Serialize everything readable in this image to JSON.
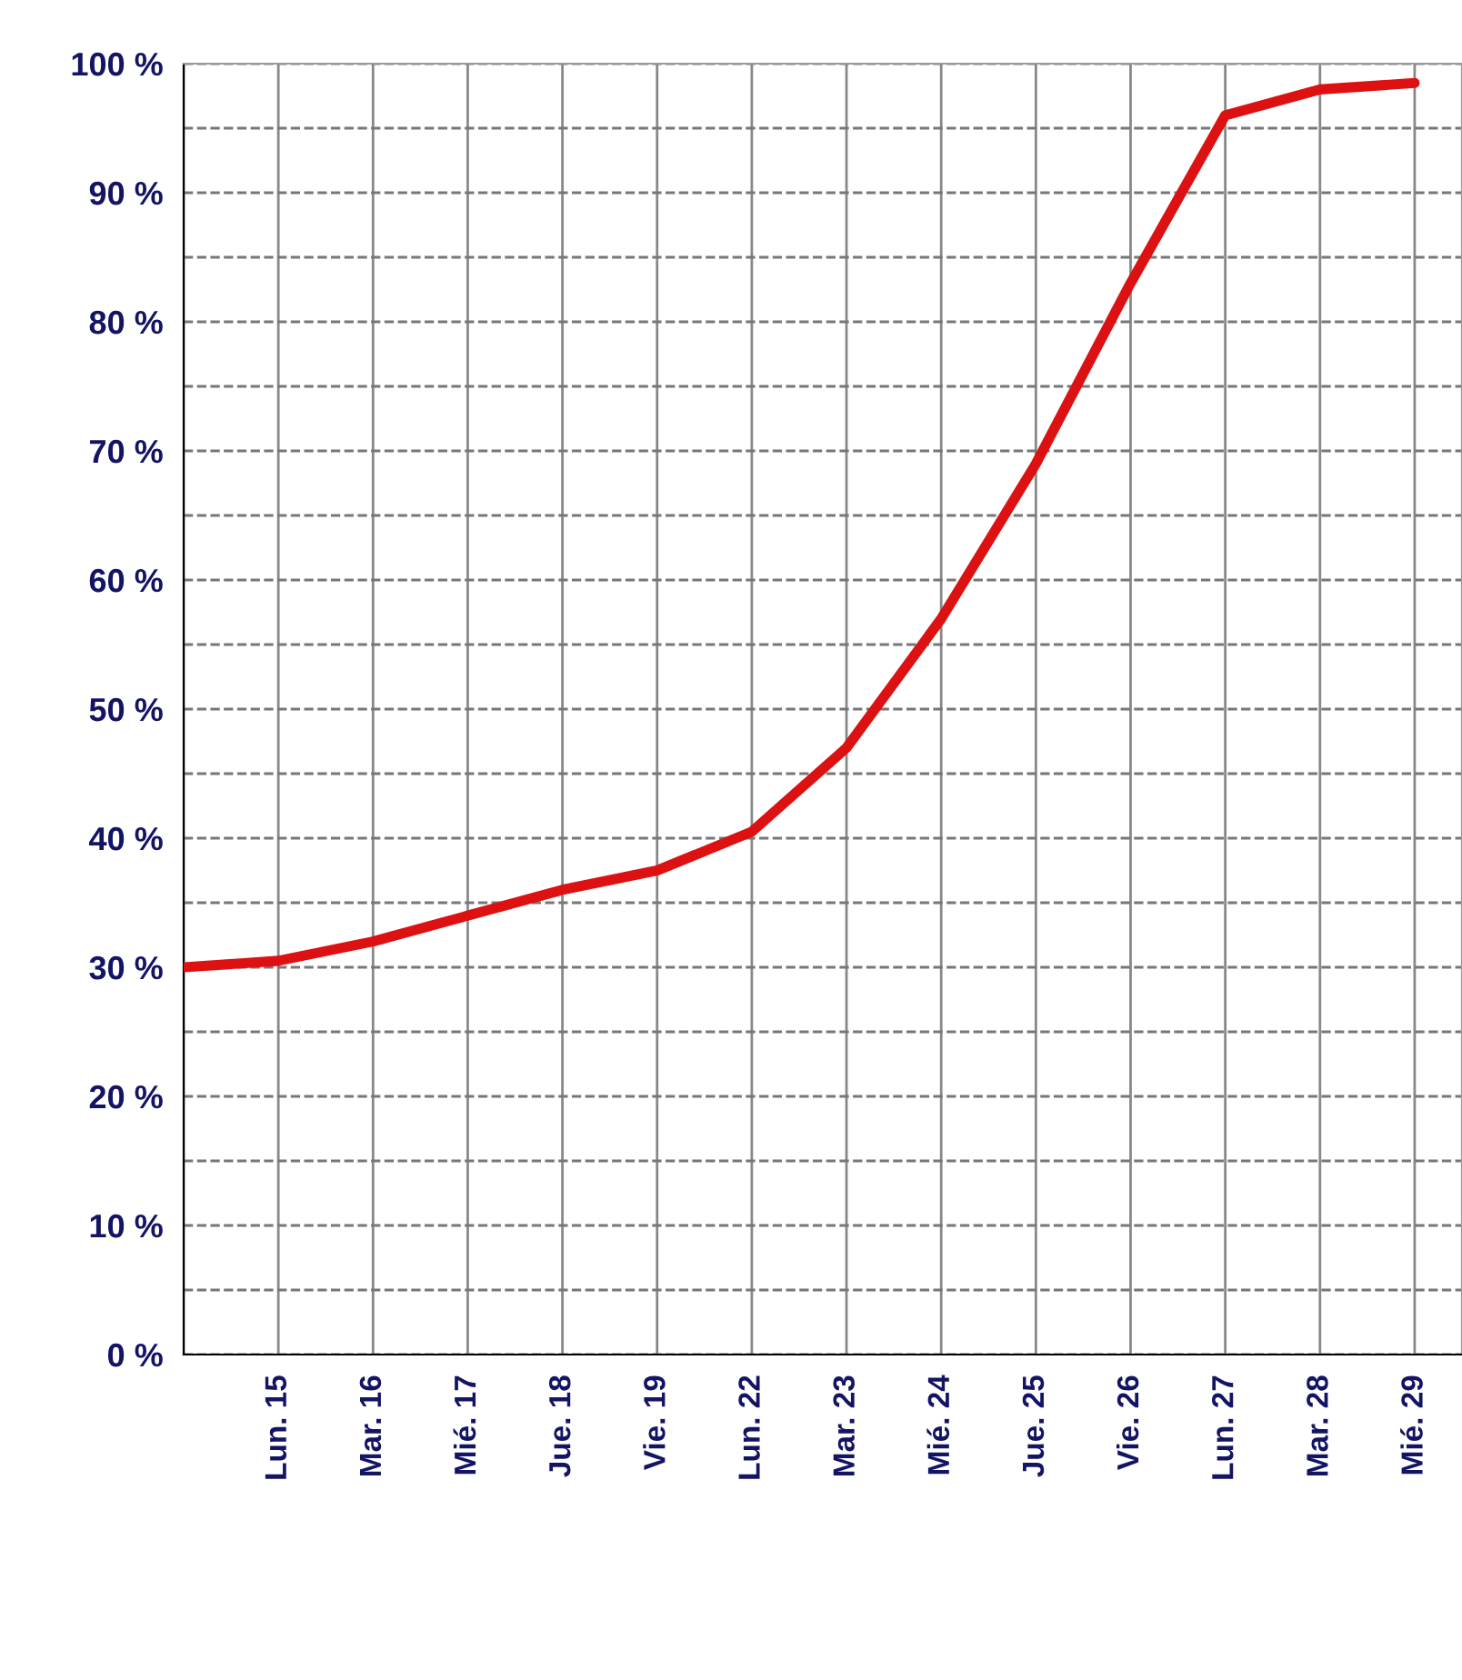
{
  "chart_data": {
    "type": "line",
    "categories": [
      null,
      "Lun. 15",
      "Mar. 16",
      "Mié. 17",
      "Jue. 18",
      "Vie. 19",
      "Lun. 22",
      "Mar. 23",
      "Mié. 24",
      "Jue. 25",
      "Vie. 26",
      "Lun. 27",
      "Mar. 28",
      "Mié. 29"
    ],
    "series": [
      {
        "color": "#dd1111",
        "values": [
          30,
          30.5,
          32,
          34,
          36,
          37.5,
          40.5,
          47,
          57,
          69,
          83,
          96,
          98,
          98.5
        ]
      }
    ],
    "ylim": [
      0,
      100
    ],
    "yticks": [
      {
        "value": 0,
        "label": "0 %"
      },
      {
        "value": 5,
        "label": null
      },
      {
        "value": 10,
        "label": "10 %"
      },
      {
        "value": 15,
        "label": null
      },
      {
        "value": 20,
        "label": "20 %"
      },
      {
        "value": 25,
        "label": null
      },
      {
        "value": 30,
        "label": "30 %"
      },
      {
        "value": 35,
        "label": null
      },
      {
        "value": 40,
        "label": "40 %"
      },
      {
        "value": 45,
        "label": null
      },
      {
        "value": 50,
        "label": "50 %"
      },
      {
        "value": 55,
        "label": null
      },
      {
        "value": 60,
        "label": "60 %"
      },
      {
        "value": 65,
        "label": null
      },
      {
        "value": 70,
        "label": "70 %"
      },
      {
        "value": 75,
        "label": null
      },
      {
        "value": 80,
        "label": "80 %"
      },
      {
        "value": 85,
        "label": null
      },
      {
        "value": 90,
        "label": "90 %"
      },
      {
        "value": 95,
        "label": null
      },
      {
        "value": 100,
        "label": "100 %"
      }
    ],
    "grid": true,
    "legend": false,
    "marker": "none",
    "line_style": "solid"
  }
}
